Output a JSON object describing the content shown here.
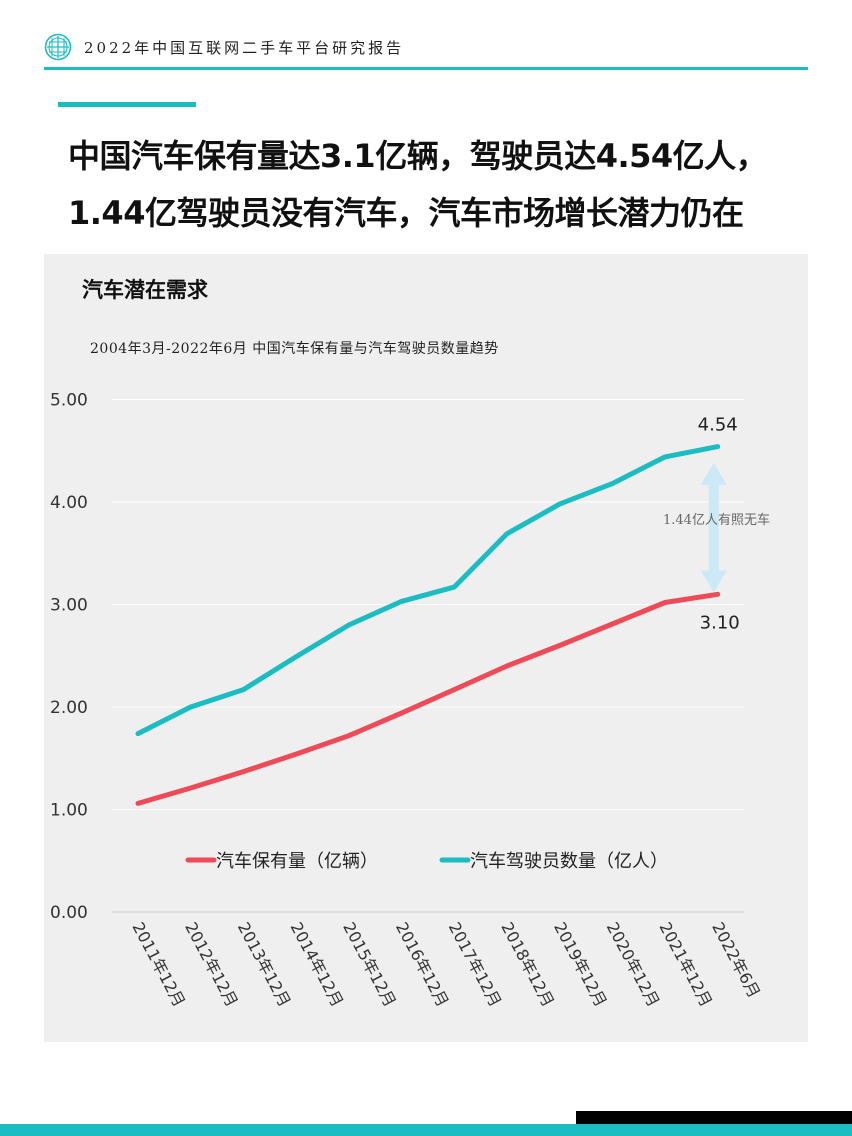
{
  "header": {
    "title": "2022年中国互联网二手车平台研究报告",
    "logo_icon": "globe-grid-icon"
  },
  "headline": {
    "line1": "中国汽车保有量达3.1亿辆，驾驶员达4.54亿人，",
    "line2": "1.44亿驾驶员没有汽车，汽车市场增长潜力仍在"
  },
  "panel": {
    "title": "汽车潜在需求"
  },
  "colors": {
    "teal": "#1bbcc2",
    "red": "#ee4a57",
    "arrow": "#cbe9f6",
    "panel_bg": "#efefef"
  },
  "chart_data": {
    "type": "line",
    "title": "2004年3月-2022年6月 中国汽车保有量与汽车驾驶员数量趋势",
    "categories": [
      "2011年12月",
      "2012年12月",
      "2013年12月",
      "2014年12月",
      "2015年12月",
      "2016年12月",
      "2017年12月",
      "2018年12月",
      "2019年12月",
      "2020年12月",
      "2021年12月",
      "2022年6月"
    ],
    "series": [
      {
        "name": "汽车保有量（亿辆）",
        "color": "#ee4a57",
        "values": [
          1.06,
          1.21,
          1.37,
          1.54,
          1.72,
          1.94,
          2.17,
          2.4,
          2.6,
          2.81,
          3.02,
          3.1
        ]
      },
      {
        "name": "汽车驾驶员数量（亿人）",
        "color": "#1bbcc2",
        "values": [
          1.74,
          2.0,
          2.17,
          2.49,
          2.8,
          3.03,
          3.17,
          3.69,
          3.98,
          4.18,
          4.44,
          4.54
        ]
      }
    ],
    "yticks": [
      "0.00",
      "1.00",
      "2.00",
      "3.00",
      "4.00",
      "5.00"
    ],
    "ylim": [
      0,
      5
    ],
    "grid": true,
    "legend": "inside-bottom",
    "annotations": {
      "end_top": "4.54",
      "end_bottom": "3.10",
      "gap_label": "1.44亿人有照无车"
    }
  }
}
